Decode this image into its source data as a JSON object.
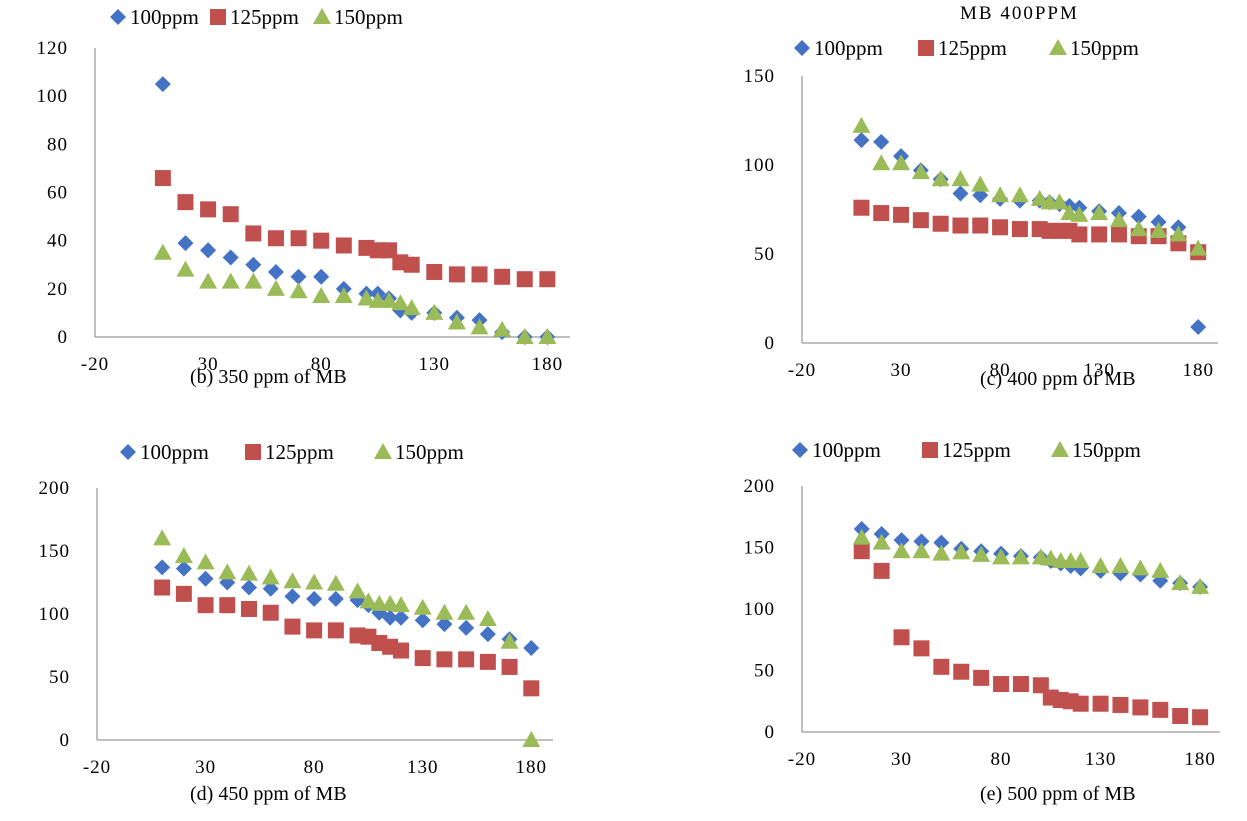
{
  "figure": {
    "colors": {
      "s100": "#4472C4",
      "s125": "#C0504D",
      "s150": "#9BBB59"
    }
  },
  "chart_data": [
    {
      "type": "scatter",
      "title": "",
      "caption": "(b) 350 ppm of MB",
      "xlim": [
        -20,
        190
      ],
      "ylim": [
        0,
        120
      ],
      "xticks": [
        -20,
        30,
        80,
        130,
        180
      ],
      "yticks": [
        0,
        20,
        40,
        60,
        80,
        100,
        120
      ],
      "xtick_labels": [
        "-20",
        "30",
        "80",
        "130",
        "180"
      ],
      "ytick_labels": [
        "0",
        "20",
        "40",
        "60",
        "80",
        "100",
        "120"
      ],
      "legend": "top",
      "series": [
        {
          "name": "100ppm",
          "marker": "diamond",
          "x": [
            10,
            20,
            30,
            40,
            50,
            60,
            70,
            80,
            90,
            100,
            105,
            110,
            115,
            120,
            130,
            140,
            150,
            160,
            170,
            180
          ],
          "y": [
            105,
            39,
            36,
            33,
            30,
            27,
            25,
            25,
            20,
            18,
            18,
            16,
            11,
            10,
            10,
            8,
            7,
            2,
            0,
            0
          ]
        },
        {
          "name": "125ppm",
          "marker": "square",
          "x": [
            10,
            20,
            30,
            40,
            50,
            60,
            70,
            80,
            90,
            100,
            105,
            110,
            115,
            120,
            130,
            140,
            150,
            160,
            170,
            180
          ],
          "y": [
            66,
            56,
            53,
            51,
            43,
            41,
            41,
            40,
            38,
            37,
            36,
            36,
            31,
            30,
            27,
            26,
            26,
            25,
            24,
            24
          ]
        },
        {
          "name": "150ppm",
          "marker": "triangle",
          "x": [
            10,
            20,
            30,
            40,
            50,
            60,
            70,
            80,
            90,
            100,
            105,
            110,
            115,
            120,
            130,
            140,
            150,
            160,
            170,
            180
          ],
          "y": [
            35,
            28,
            23,
            23,
            23,
            20,
            19,
            17,
            17,
            16,
            15,
            15,
            14,
            12,
            10,
            6,
            4,
            3,
            0,
            0
          ]
        }
      ]
    },
    {
      "type": "scatter",
      "title": "MB 400PPM",
      "caption": "(c) 400 ppm of MB",
      "xlim": [
        -20,
        190
      ],
      "ylim": [
        0,
        150
      ],
      "xticks": [
        -20,
        30,
        80,
        130,
        180
      ],
      "yticks": [
        0,
        50,
        100,
        150
      ],
      "xtick_labels": [
        "-20",
        "30",
        "80",
        "130",
        "180"
      ],
      "ytick_labels": [
        "0",
        "50",
        "100",
        "150"
      ],
      "legend": "top",
      "series": [
        {
          "name": "100ppm",
          "marker": "diamond",
          "x": [
            10,
            20,
            30,
            40,
            50,
            60,
            70,
            80,
            90,
            100,
            105,
            110,
            115,
            120,
            130,
            140,
            150,
            160,
            170,
            180
          ],
          "y": [
            114,
            113,
            105,
            97,
            92,
            84,
            83,
            81,
            80,
            80,
            79,
            78,
            77,
            76,
            74,
            73,
            71,
            68,
            65,
            9
          ]
        },
        {
          "name": "125ppm",
          "marker": "square",
          "x": [
            10,
            20,
            30,
            40,
            50,
            60,
            70,
            80,
            90,
            100,
            105,
            110,
            115,
            120,
            130,
            140,
            150,
            160,
            170,
            180
          ],
          "y": [
            76,
            73,
            72,
            69,
            67,
            66,
            66,
            65,
            64,
            64,
            63,
            63,
            63,
            61,
            61,
            61,
            60,
            60,
            56,
            51
          ]
        },
        {
          "name": "150ppm",
          "marker": "triangle",
          "x": [
            10,
            20,
            30,
            40,
            50,
            60,
            70,
            80,
            90,
            100,
            105,
            110,
            115,
            120,
            130,
            140,
            150,
            160,
            170,
            180
          ],
          "y": [
            122,
            101,
            101,
            96,
            92,
            92,
            89,
            83,
            83,
            81,
            79,
            79,
            73,
            72,
            73,
            69,
            64,
            63,
            61,
            53
          ]
        }
      ]
    },
    {
      "type": "scatter",
      "title": "",
      "caption": "(d) 450 ppm of MB",
      "xlim": [
        -20,
        190
      ],
      "ylim": [
        0,
        200
      ],
      "xticks": [
        -20,
        30,
        80,
        130,
        180
      ],
      "yticks": [
        0,
        50,
        100,
        150,
        200
      ],
      "xtick_labels": [
        "-20",
        "30",
        "80",
        "130",
        "180"
      ],
      "ytick_labels": [
        "0",
        "50",
        "100",
        "150",
        "200"
      ],
      "legend": "top",
      "series": [
        {
          "name": "100ppm",
          "marker": "diamond",
          "x": [
            10,
            20,
            30,
            40,
            50,
            60,
            70,
            80,
            90,
            100,
            105,
            110,
            115,
            120,
            130,
            140,
            150,
            160,
            170,
            180
          ],
          "y": [
            137,
            136,
            128,
            125,
            121,
            120,
            114,
            112,
            112,
            111,
            107,
            101,
            97,
            97,
            95,
            92,
            89,
            84,
            80,
            73
          ]
        },
        {
          "name": "125ppm",
          "marker": "square",
          "x": [
            10,
            20,
            30,
            40,
            50,
            60,
            70,
            80,
            90,
            100,
            105,
            110,
            115,
            120,
            130,
            140,
            150,
            160,
            170,
            180
          ],
          "y": [
            121,
            116,
            107,
            107,
            104,
            101,
            90,
            87,
            87,
            83,
            82,
            77,
            74,
            71,
            65,
            64,
            64,
            62,
            58,
            41
          ]
        },
        {
          "name": "150ppm",
          "marker": "triangle",
          "x": [
            10,
            20,
            30,
            40,
            50,
            60,
            70,
            80,
            90,
            100,
            105,
            110,
            115,
            120,
            130,
            140,
            150,
            160,
            170,
            180
          ],
          "y": [
            160,
            146,
            141,
            133,
            132,
            129,
            126,
            125,
            124,
            118,
            110,
            108,
            108,
            107,
            105,
            101,
            101,
            96,
            78,
            0
          ]
        }
      ]
    },
    {
      "type": "scatter",
      "title": "",
      "caption": "(e) 500 ppm of MB",
      "xlim": [
        -20,
        190
      ],
      "ylim": [
        0,
        200
      ],
      "xticks": [
        -20,
        30,
        80,
        130,
        180
      ],
      "yticks": [
        0,
        50,
        100,
        150,
        200
      ],
      "xtick_labels": [
        "-20",
        "30",
        "80",
        "130",
        "180"
      ],
      "ytick_labels": [
        "0",
        "50",
        "100",
        "150",
        "200"
      ],
      "legend": "top",
      "series": [
        {
          "name": "100ppm",
          "marker": "diamond",
          "x": [
            10,
            20,
            30,
            40,
            50,
            60,
            70,
            80,
            90,
            100,
            105,
            110,
            115,
            120,
            130,
            140,
            150,
            160,
            170,
            180
          ],
          "y": [
            165,
            161,
            156,
            155,
            154,
            149,
            147,
            145,
            143,
            142,
            139,
            137,
            135,
            133,
            131,
            129,
            128,
            123,
            121,
            118
          ]
        },
        {
          "name": "125ppm",
          "marker": "square",
          "x": [
            10,
            20,
            30,
            40,
            50,
            60,
            70,
            80,
            90,
            100,
            105,
            110,
            115,
            120,
            130,
            140,
            150,
            160,
            170,
            180
          ],
          "y": [
            147,
            131,
            77,
            68,
            53,
            49,
            44,
            39,
            39,
            38,
            28,
            26,
            25,
            23,
            23,
            22,
            20,
            18,
            13,
            12
          ]
        },
        {
          "name": "150ppm",
          "marker": "triangle",
          "x": [
            10,
            20,
            30,
            40,
            50,
            60,
            70,
            80,
            90,
            100,
            105,
            110,
            115,
            120,
            130,
            140,
            150,
            160,
            170,
            180
          ],
          "y": [
            158,
            154,
            147,
            147,
            145,
            146,
            144,
            142,
            142,
            142,
            141,
            139,
            139,
            139,
            135,
            135,
            133,
            131,
            121,
            118
          ]
        }
      ]
    }
  ]
}
